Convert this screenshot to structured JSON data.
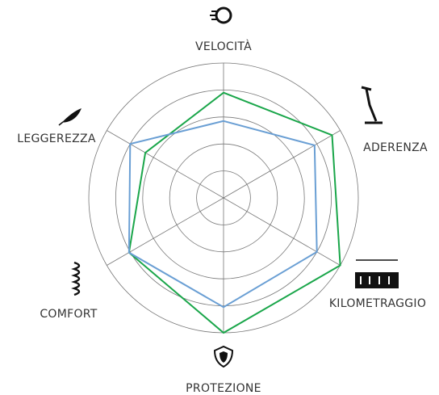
{
  "chart_data": {
    "type": "radar",
    "categories": [
      "VELOCITÀ",
      "ADERENZA",
      "KILOMETRAGGIO",
      "PROTEZIONE",
      "COMFORT",
      "LEGGEREZZA"
    ],
    "rlim": [
      0,
      100
    ],
    "rticks": [
      20,
      40,
      60,
      80,
      100
    ],
    "series": [
      {
        "color": "#1aa64a",
        "values": [
          78,
          93,
          100,
          100,
          81,
          67
        ]
      },
      {
        "color": "#6a9fd4",
        "values": [
          57,
          78,
          80,
          81,
          81,
          80
        ]
      }
    ]
  }
}
